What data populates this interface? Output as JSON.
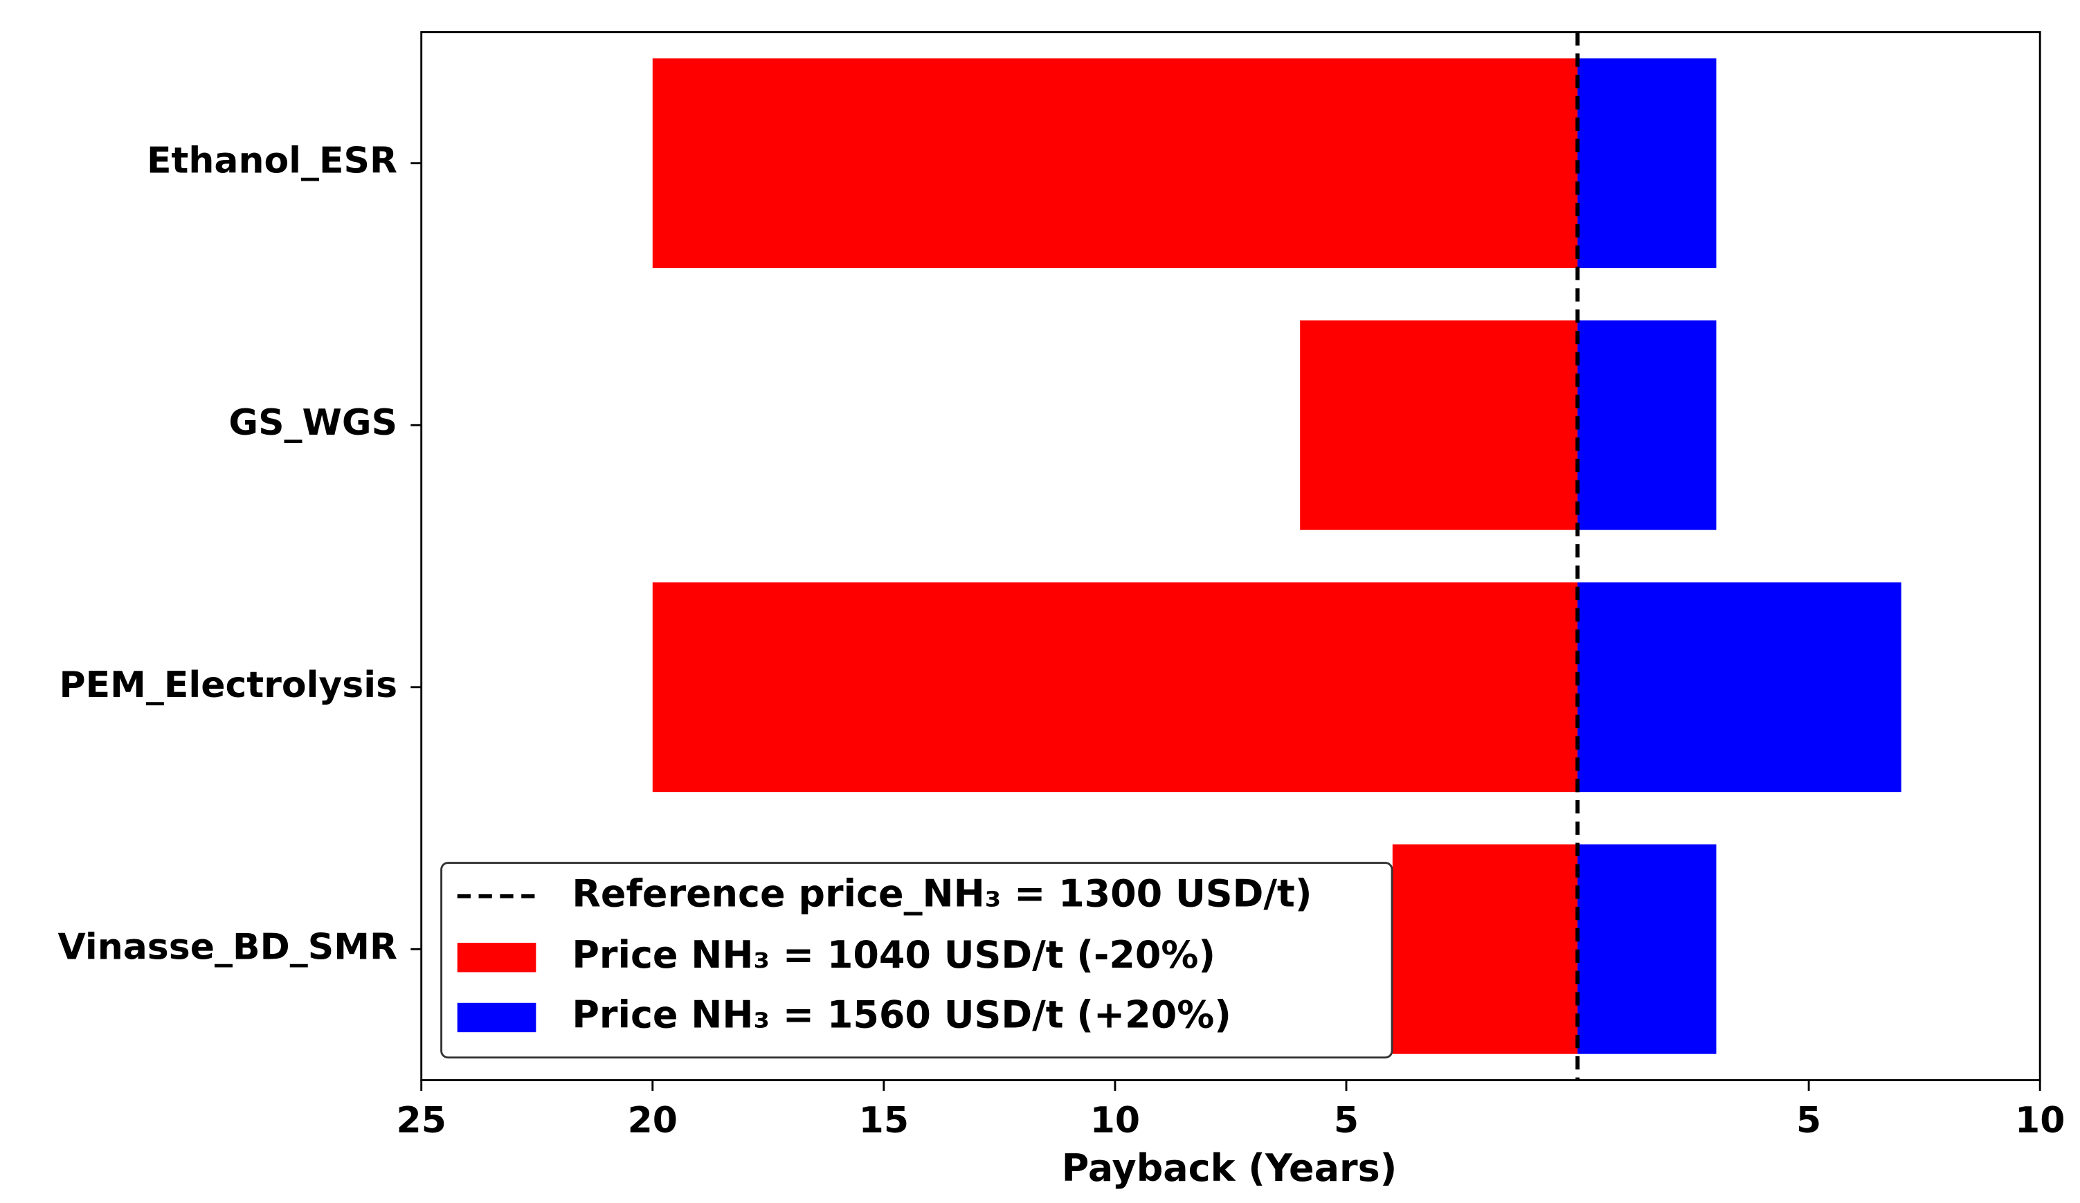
{
  "chart_data": {
    "type": "bar",
    "orientation": "horizontal",
    "categories": [
      "Ethanol_ESR",
      "GS_WGS",
      "PEM_Electrolysis",
      "Vinasse_BD_SMR"
    ],
    "series": [
      {
        "name": "Price NH₃ = 1040 USD/t (-20%)",
        "color": "#ff0000",
        "values": [
          -20,
          -6,
          -20,
          -4
        ]
      },
      {
        "name": "Price NH₃ = 1560 USD/t (+20%)",
        "color": "#0000ff",
        "values": [
          3,
          3,
          7,
          3
        ]
      }
    ],
    "reference": {
      "name": "Reference price_NH₃ = 1300 USD/t)",
      "value": 0,
      "color": "#000000"
    },
    "xlabel": "Payback (Years)",
    "xlim": [
      -25,
      10
    ],
    "xticks": [
      {
        "value": -25,
        "label": "25"
      },
      {
        "value": -20,
        "label": "20"
      },
      {
        "value": -15,
        "label": "15"
      },
      {
        "value": -10,
        "label": "10"
      },
      {
        "value": -5,
        "label": "5"
      },
      5,
      10
    ],
    "legend": "lower left"
  }
}
